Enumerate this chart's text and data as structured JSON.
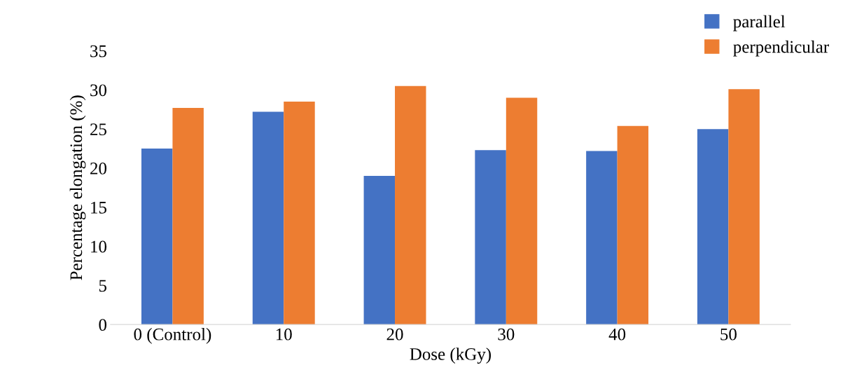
{
  "chart_data": {
    "type": "bar",
    "xlabel": "Dose (kGy)",
    "ylabel": "Percentage elongation (%)",
    "categories": [
      "0 (Control)",
      "10",
      "20",
      "30",
      "40",
      "50"
    ],
    "series": [
      {
        "name": "parallel",
        "color": "#4472c4",
        "values": [
          22.5,
          27.2,
          19.0,
          22.3,
          22.2,
          25.0
        ]
      },
      {
        "name": "perpendicular",
        "color": "#ed7d31",
        "values": [
          27.7,
          28.5,
          30.5,
          29.0,
          25.4,
          30.1
        ]
      }
    ],
    "ylim": [
      0,
      35
    ],
    "yticks": [
      0,
      5,
      10,
      15,
      20,
      25,
      30,
      35
    ],
    "grid": false,
    "legend": "top right"
  }
}
